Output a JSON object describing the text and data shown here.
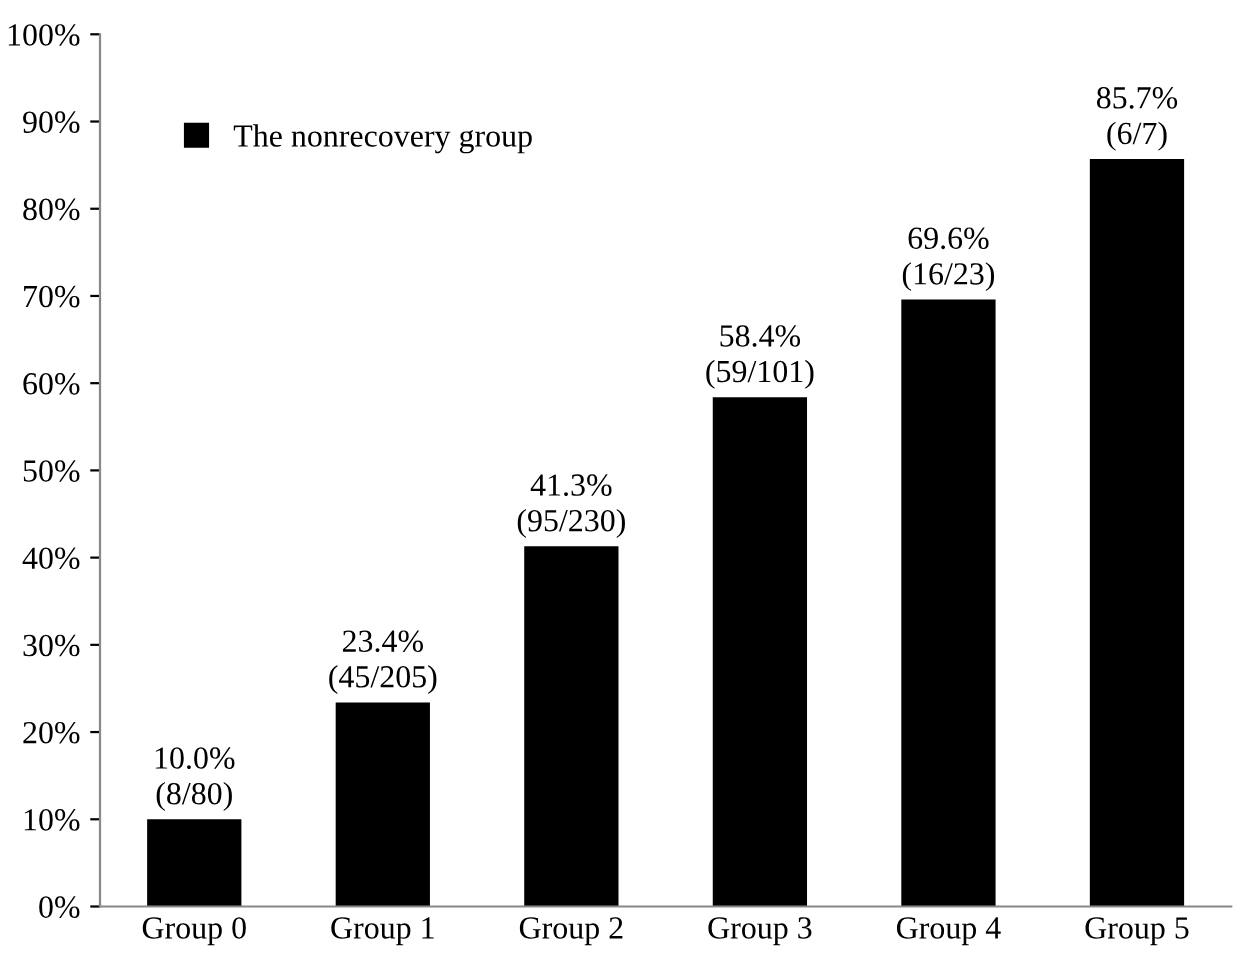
{
  "chart_data": {
    "type": "bar",
    "categories": [
      "Group 0",
      "Group 1",
      "Group 2",
      "Group 3",
      "Group 4",
      "Group 5"
    ],
    "series": [
      {
        "name": "The nonrecovery group",
        "color": "#000000",
        "values": [
          10.0,
          23.4,
          41.3,
          58.4,
          69.6,
          85.7
        ],
        "value_labels": [
          "10.0%\n(8/80)",
          "23.4%\n(45/205)",
          "41.3%\n(95/230)",
          "58.4%\n(59/101)",
          "69.6%\n(16/23)",
          "85.7%\n(6/7)"
        ]
      }
    ],
    "ylim": [
      0,
      100
    ],
    "yticks": [
      {
        "value": 0,
        "label": "0%"
      },
      {
        "value": 10,
        "label": "10%"
      },
      {
        "value": 20,
        "label": "20%"
      },
      {
        "value": 30,
        "label": "30%"
      },
      {
        "value": 40,
        "label": "40%"
      },
      {
        "value": 50,
        "label": "50%"
      },
      {
        "value": 60,
        "label": "60%"
      },
      {
        "value": 70,
        "label": "70%"
      },
      {
        "value": 80,
        "label": "80%"
      },
      {
        "value": 90,
        "label": "90%"
      },
      {
        "value": 100,
        "label": "100%"
      }
    ],
    "grid": false,
    "legend": "top left"
  }
}
